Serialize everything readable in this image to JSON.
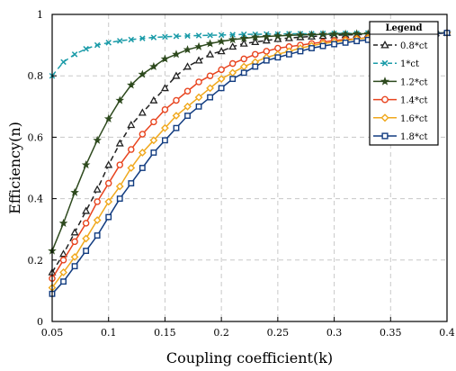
{
  "chart_data": {
    "type": "line",
    "title": "",
    "xlabel": "Coupling coefficient(k)",
    "ylabel": "Efficiency(n)",
    "xlim": [
      0.05,
      0.4
    ],
    "ylim": [
      0,
      1
    ],
    "grid": true,
    "legend_title": "Legend",
    "legend_position": "top-right",
    "x_ticks": [
      "0.05",
      "0.1",
      "0.15",
      "0.2",
      "0.25",
      "0.3",
      "0.35",
      "0.4"
    ],
    "y_ticks": [
      "0",
      "0.2",
      "0.4",
      "0.6",
      "0.8",
      "1"
    ],
    "x": [
      0.05,
      0.06,
      0.07,
      0.08,
      0.09,
      0.1,
      0.11,
      0.12,
      0.13,
      0.14,
      0.15,
      0.16,
      0.17,
      0.18,
      0.19,
      0.2,
      0.21,
      0.22,
      0.23,
      0.24,
      0.25,
      0.26,
      0.27,
      0.28,
      0.29,
      0.3,
      0.31,
      0.32,
      0.33,
      0.34,
      0.35,
      0.36,
      0.37,
      0.38,
      0.39,
      0.4
    ],
    "series": [
      {
        "name": "0.8*ct",
        "color": "#222222",
        "marker": "triangle",
        "dash": true,
        "values": [
          0.16,
          0.22,
          0.29,
          0.36,
          0.43,
          0.51,
          0.58,
          0.64,
          0.68,
          0.72,
          0.76,
          0.8,
          0.83,
          0.85,
          0.87,
          0.88,
          0.895,
          0.905,
          0.91,
          0.915,
          0.92,
          0.923,
          0.926,
          0.928,
          0.93,
          0.932,
          0.933,
          0.934,
          0.935,
          0.936,
          0.937,
          0.938,
          0.938,
          0.939,
          0.939,
          0.94
        ]
      },
      {
        "name": "1*ct",
        "color": "#1a9ba8",
        "marker": "x",
        "dash": true,
        "values": [
          0.8,
          0.845,
          0.87,
          0.888,
          0.9,
          0.908,
          0.914,
          0.918,
          0.922,
          0.925,
          0.927,
          0.929,
          0.93,
          0.931,
          0.932,
          0.933,
          0.934,
          0.935,
          0.935,
          0.936,
          0.936,
          0.937,
          0.937,
          0.937,
          0.938,
          0.938,
          0.938,
          0.938,
          0.939,
          0.939,
          0.939,
          0.939,
          0.939,
          0.94,
          0.94,
          0.94
        ]
      },
      {
        "name": "1.2*ct",
        "color": "#2e4a1e",
        "marker": "star",
        "dash": false,
        "values": [
          0.23,
          0.32,
          0.42,
          0.51,
          0.59,
          0.66,
          0.72,
          0.77,
          0.805,
          0.83,
          0.855,
          0.87,
          0.885,
          0.895,
          0.905,
          0.912,
          0.918,
          0.922,
          0.926,
          0.928,
          0.93,
          0.932,
          0.933,
          0.934,
          0.935,
          0.936,
          0.936,
          0.937,
          0.937,
          0.938,
          0.938,
          0.938,
          0.939,
          0.939,
          0.939,
          0.94
        ]
      },
      {
        "name": "1.4*ct",
        "color": "#e8441f",
        "marker": "circle",
        "dash": false,
        "values": [
          0.14,
          0.2,
          0.26,
          0.32,
          0.39,
          0.45,
          0.51,
          0.56,
          0.61,
          0.65,
          0.69,
          0.72,
          0.75,
          0.78,
          0.8,
          0.82,
          0.84,
          0.855,
          0.87,
          0.88,
          0.89,
          0.895,
          0.9,
          0.905,
          0.91,
          0.915,
          0.918,
          0.921,
          0.924,
          0.927,
          0.929,
          0.931,
          0.933,
          0.935,
          0.937,
          0.94
        ]
      },
      {
        "name": "1.6*ct",
        "color": "#f0a81c",
        "marker": "diamond",
        "dash": false,
        "values": [
          0.11,
          0.16,
          0.21,
          0.27,
          0.33,
          0.39,
          0.44,
          0.5,
          0.55,
          0.59,
          0.63,
          0.67,
          0.7,
          0.73,
          0.76,
          0.79,
          0.81,
          0.83,
          0.845,
          0.86,
          0.87,
          0.88,
          0.89,
          0.898,
          0.905,
          0.91,
          0.915,
          0.92,
          0.923,
          0.926,
          0.929,
          0.931,
          0.933,
          0.935,
          0.937,
          0.94
        ]
      },
      {
        "name": "1.8*ct",
        "color": "#123c80",
        "marker": "square",
        "dash": false,
        "values": [
          0.09,
          0.13,
          0.18,
          0.23,
          0.28,
          0.34,
          0.4,
          0.45,
          0.5,
          0.55,
          0.59,
          0.63,
          0.67,
          0.7,
          0.73,
          0.76,
          0.79,
          0.81,
          0.83,
          0.85,
          0.86,
          0.87,
          0.88,
          0.89,
          0.897,
          0.903,
          0.908,
          0.913,
          0.917,
          0.921,
          0.925,
          0.928,
          0.931,
          0.934,
          0.937,
          0.94
        ]
      }
    ]
  }
}
